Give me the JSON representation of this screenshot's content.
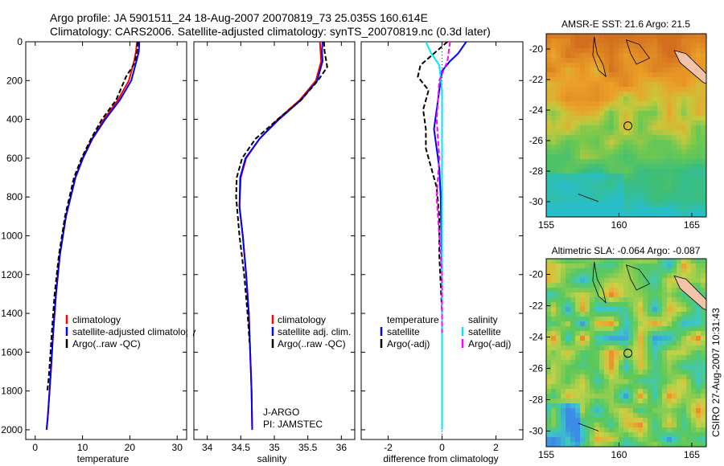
{
  "header": {
    "line1": "Argo profile: JA 5901511_24 18-Aug-2007 20070819_73 25.035S 160.614E",
    "line2": "Climatology: CARS2006. Satellite-adjusted climatology: synTS_20070819.nc (0.3d later)"
  },
  "side_note": "CSIRO 27-Aug-2007 10:31:43",
  "float_label": {
    "line1": "J-ARGO",
    "line2": "PI: JAMSTEC"
  },
  "colors": {
    "climatology": "#ff0000",
    "satellite": "#0000ff",
    "argo": "#000000",
    "sat_salinity": "#00e5ff",
    "argo_salinity": "#ff00ff",
    "land": "#f4c2a8"
  },
  "chart_data": [
    {
      "type": "line",
      "id": "temperature",
      "xlabel": "temperature",
      "xlim": [
        -2,
        32
      ],
      "ylim": [
        2050,
        0
      ],
      "xticks": [
        "0",
        "10",
        "20",
        "30"
      ],
      "yticks": [
        "0",
        "200",
        "400",
        "600",
        "800",
        "1000",
        "1200",
        "1400",
        "1600",
        "1800",
        "2000"
      ],
      "legend": [
        "climatology",
        "satellite-adjusted climatology",
        "Argo(..raw -QC)"
      ],
      "series": [
        {
          "name": "climatology",
          "color": "#ff0000",
          "x": [
            21.5,
            21.3,
            20.9,
            19.8,
            17.5,
            14.5,
            12.0,
            10.0,
            8.5,
            6.5,
            5.2,
            4.4,
            3.8,
            3.3,
            2.9,
            2.6,
            2.4
          ],
          "y": [
            0,
            50,
            100,
            200,
            300,
            400,
            500,
            600,
            700,
            900,
            1100,
            1300,
            1500,
            1700,
            1850,
            1950,
            2000
          ]
        },
        {
          "name": "satellite-adjusted climatology",
          "color": "#0000ff",
          "x": [
            22.0,
            21.9,
            21.4,
            20.3,
            17.9,
            14.8,
            12.1,
            10.1,
            8.5,
            6.5,
            5.2,
            4.4,
            3.8,
            3.3,
            2.9,
            2.6,
            2.4
          ],
          "y": [
            0,
            50,
            100,
            200,
            300,
            400,
            500,
            600,
            700,
            900,
            1100,
            1300,
            1500,
            1700,
            1850,
            1950,
            2000
          ]
        },
        {
          "name": "Argo(..raw -QC)",
          "color": "#000000",
          "x": [
            21.7,
            21.6,
            21.0,
            19.2,
            17.1,
            14.1,
            11.8,
            9.8,
            8.2,
            6.3,
            5.0,
            4.1,
            3.5,
            3.1,
            2.8,
            2.55
          ],
          "y": [
            0,
            40,
            110,
            180,
            300,
            400,
            500,
            600,
            700,
            900,
            1100,
            1300,
            1500,
            1650,
            1750,
            1800
          ]
        }
      ]
    },
    {
      "type": "line",
      "id": "salinity",
      "xlabel": "salinity",
      "xlim": [
        33.8,
        36.2
      ],
      "ylim": [
        2050,
        0
      ],
      "xticks": [
        "34",
        "34.5",
        "35",
        "35.5",
        "36"
      ],
      "legend": [
        "climatology",
        "satellite adj. clim.",
        "Argo(..raw -QC)"
      ],
      "series": [
        {
          "name": "climatology",
          "color": "#ff0000",
          "x": [
            35.68,
            35.69,
            35.7,
            35.62,
            35.38,
            35.05,
            34.78,
            34.58,
            34.5,
            34.48,
            34.53,
            34.58,
            34.62,
            34.64,
            34.66,
            34.67
          ],
          "y": [
            0,
            50,
            100,
            200,
            300,
            400,
            500,
            600,
            700,
            850,
            1000,
            1200,
            1400,
            1600,
            1800,
            2000
          ]
        },
        {
          "name": "satellite adj. clim.",
          "color": "#0000ff",
          "x": [
            35.72,
            35.71,
            35.72,
            35.64,
            35.4,
            35.07,
            34.78,
            34.57,
            34.49,
            34.48,
            34.53,
            34.58,
            34.62,
            34.64,
            34.66,
            34.67
          ],
          "y": [
            0,
            50,
            100,
            200,
            300,
            400,
            500,
            600,
            700,
            850,
            1000,
            1200,
            1400,
            1600,
            1800,
            2000
          ]
        },
        {
          "name": "Argo(..raw -QC)",
          "color": "#000000",
          "x": [
            35.74,
            35.75,
            35.79,
            35.65,
            35.4,
            35.05,
            34.72,
            34.52,
            34.44,
            34.43,
            34.48,
            34.55,
            34.6,
            34.63
          ],
          "y": [
            0,
            50,
            130,
            200,
            300,
            400,
            500,
            600,
            700,
            800,
            1000,
            1200,
            1400,
            1550
          ]
        }
      ]
    },
    {
      "type": "line",
      "id": "difference",
      "xlabel": "difference from climatology",
      "xlim": [
        -3,
        3
      ],
      "ylim": [
        2050,
        0
      ],
      "xticks": [
        "-2",
        "0",
        "2"
      ],
      "legend": [
        "temperature",
        "satellite",
        "Argo(-adj)",
        "salinity",
        "satellite",
        "Argo(-adj)"
      ],
      "series": [
        {
          "name": "temperature satellite",
          "color": "#0000ff",
          "x": [
            0.9,
            0.6,
            0.3,
            0.0,
            -0.1,
            -0.2,
            -0.3,
            -0.2,
            -0.1,
            -0.05,
            0.0,
            0.0,
            0.0
          ],
          "y": [
            0,
            60,
            100,
            150,
            250,
            350,
            450,
            550,
            650,
            800,
            1200,
            1600,
            1960
          ]
        },
        {
          "name": "temperature Argo(-adj)",
          "color": "#000000",
          "x": [
            0.2,
            -0.3,
            -0.8,
            -0.9,
            -0.5,
            -0.7,
            -0.6,
            -0.6,
            -0.4,
            -0.2,
            -0.1,
            -0.1,
            0.0,
            0.0
          ],
          "y": [
            0,
            60,
            120,
            180,
            250,
            350,
            450,
            550,
            650,
            750,
            900,
            1100,
            1400,
            1800
          ]
        },
        {
          "name": "salinity satellite",
          "color": "#00e5ff",
          "x": [
            -0.6,
            -0.4,
            -0.1,
            0.0,
            0.0,
            0.0,
            0.0
          ],
          "y": [
            0,
            60,
            120,
            250,
            600,
            1200,
            2000
          ]
        },
        {
          "name": "salinity Argo(-adj)",
          "color": "#ff00ff",
          "x": [
            0.3,
            0.2,
            -0.1,
            -0.2,
            -0.1,
            -0.2,
            -0.1,
            0.0,
            0.0
          ],
          "y": [
            0,
            100,
            200,
            400,
            600,
            800,
            1000,
            1200,
            1500
          ]
        }
      ]
    },
    {
      "type": "heatmap",
      "id": "sst_map",
      "title": "AMSR-E SST: 21.6 Argo: 21.5",
      "xticks": [
        "155",
        "160",
        "165"
      ],
      "yticks": [
        "-20",
        "-22",
        "-24",
        "-26",
        "-28",
        "-30"
      ],
      "xlim": [
        155,
        166
      ],
      "ylim": [
        -31,
        -19
      ],
      "argo_position": {
        "lon": 160.614,
        "lat": -25.035
      }
    },
    {
      "type": "heatmap",
      "id": "sla_map",
      "title": "Altimetric SLA: -0.064 Argo: -0.087",
      "xticks": [
        "155",
        "160",
        "165"
      ],
      "yticks": [
        "-20",
        "-22",
        "-24",
        "-26",
        "-28",
        "-30"
      ],
      "xlim": [
        155,
        166
      ],
      "ylim": [
        -31,
        -19
      ],
      "argo_position": {
        "lon": 160.614,
        "lat": -25.035
      }
    }
  ]
}
